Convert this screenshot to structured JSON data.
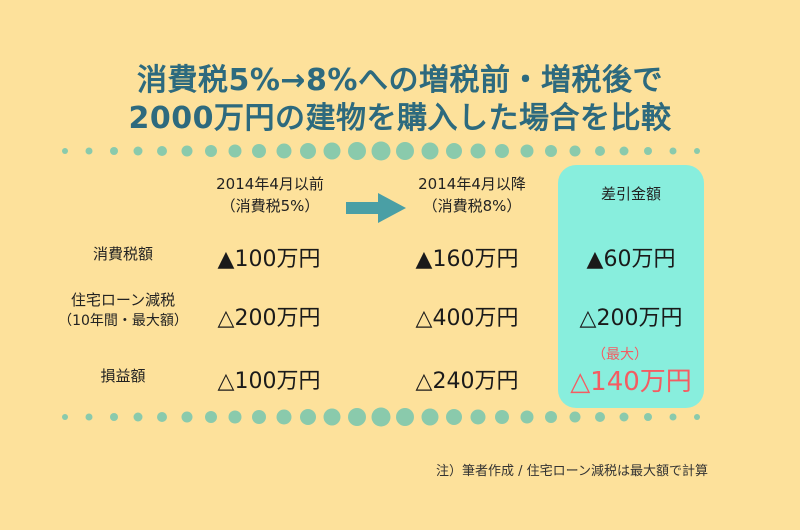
{
  "title": {
    "line1": "消費税5%→8%への増税前・増税後で",
    "line2": "2000万円の建物を購入した場合を比較"
  },
  "columns": {
    "before": {
      "line1": "2014年4月以前",
      "line2": "（消費税5%）"
    },
    "after": {
      "line1": "2014年4月以降",
      "line2": "（消費税8%）"
    },
    "diff": {
      "label": "差引金額"
    }
  },
  "rows": [
    {
      "label": "消費税額",
      "label2": "",
      "before": "▲100万円",
      "after": "▲160万円",
      "diff": "▲60万円"
    },
    {
      "label": "住宅ローン減税",
      "label2": "（10年間・最大額）",
      "before": "△200万円",
      "after": "△400万円",
      "diff": "△200万円"
    },
    {
      "label": "損益額",
      "label2": "",
      "before": "△100万円",
      "after": "△240万円",
      "diff": "△140万円",
      "diff_note": "（最大）"
    }
  ],
  "footnote": "注）筆者作成 / 住宅ローン減税は最大額で計算",
  "icons": {
    "arrow": "right-arrow-icon"
  },
  "colors": {
    "background": "#fde19b",
    "title": "#2d6a7e",
    "dots": "#8acaac",
    "highlight": "#88eedd",
    "arrow": "#4a9fa5",
    "emphasis": "#f45c62"
  }
}
